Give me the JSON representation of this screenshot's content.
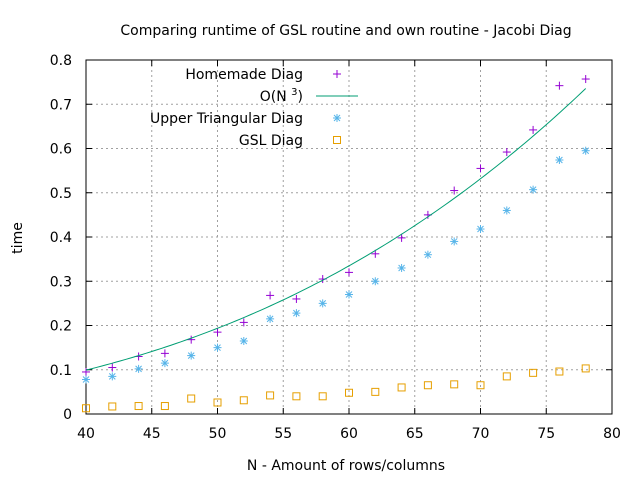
{
  "chart_data": {
    "type": "scatter",
    "title": "Comparing runtime of GSL routine and own routine - Jacobi Diag",
    "xlabel": "N - Amount of rows/columns",
    "ylabel": "time",
    "xlim": [
      40,
      80
    ],
    "ylim": [
      0,
      0.8
    ],
    "xticks": [
      40,
      45,
      50,
      55,
      60,
      65,
      70,
      75,
      80
    ],
    "yticks": [
      0,
      0.1,
      0.2,
      0.3,
      0.4,
      0.5,
      0.6,
      0.7,
      0.8
    ],
    "xtick_labels": [
      "40",
      "45",
      "50",
      "55",
      "60",
      "65",
      "70",
      "75",
      "80"
    ],
    "ytick_labels": [
      "0",
      "0.1",
      "0.2",
      "0.3",
      "0.4",
      "0.5",
      "0.6",
      "0.7",
      "0.8"
    ],
    "grid": true,
    "legend_position": "top-left",
    "series": [
      {
        "name": "Homemade Diag",
        "marker": "plus",
        "color": "#9400d3",
        "x": [
          40,
          42,
          44,
          46,
          48,
          50,
          52,
          54,
          56,
          58,
          60,
          62,
          64,
          66,
          68,
          70,
          72,
          74,
          76,
          78
        ],
        "y": [
          0.095,
          0.105,
          0.13,
          0.137,
          0.168,
          0.185,
          0.207,
          0.268,
          0.26,
          0.305,
          0.32,
          0.362,
          0.398,
          0.45,
          0.505,
          0.555,
          0.592,
          0.642,
          0.742,
          0.757
        ]
      },
      {
        "name": "O(N 3)",
        "display_label": "O(N",
        "display_sup": "3",
        "display_suffix": ")",
        "marker": "line",
        "color": "#009e73",
        "curve": {
          "kind": "cubic",
          "coefficient": 1.55e-06,
          "x_range": [
            40,
            78
          ]
        }
      },
      {
        "name": "Upper Triangular Diag",
        "marker": "asterisk",
        "color": "#56b4e9",
        "x": [
          40,
          42,
          44,
          46,
          48,
          50,
          52,
          54,
          56,
          58,
          60,
          62,
          64,
          66,
          68,
          70,
          72,
          74,
          76,
          78
        ],
        "y": [
          0.078,
          0.085,
          0.102,
          0.115,
          0.132,
          0.15,
          0.165,
          0.215,
          0.228,
          0.25,
          0.27,
          0.3,
          0.33,
          0.36,
          0.39,
          0.418,
          0.46,
          0.507,
          0.574,
          0.595
        ]
      },
      {
        "name": "GSL Diag",
        "marker": "square",
        "color": "#e69f00",
        "x": [
          40,
          42,
          44,
          46,
          48,
          50,
          52,
          54,
          56,
          58,
          60,
          62,
          64,
          66,
          68,
          70,
          72,
          74,
          76,
          78
        ],
        "y": [
          0.013,
          0.017,
          0.018,
          0.018,
          0.035,
          0.026,
          0.031,
          0.042,
          0.04,
          0.04,
          0.048,
          0.05,
          0.06,
          0.065,
          0.067,
          0.065,
          0.085,
          0.093,
          0.096,
          0.103
        ]
      }
    ]
  }
}
